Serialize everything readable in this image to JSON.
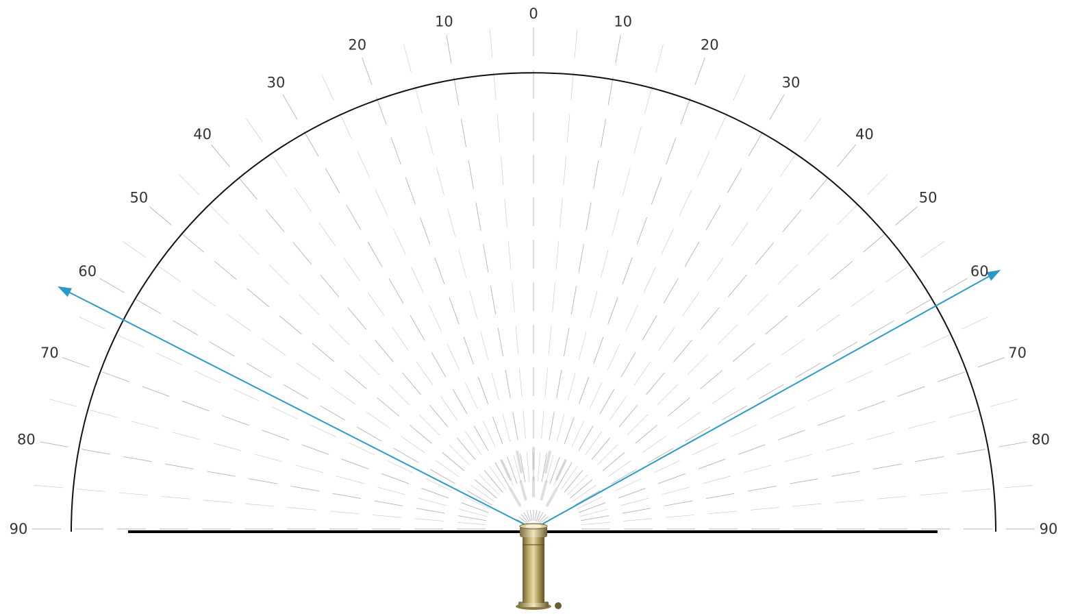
{
  "diagram": {
    "angle_scale": {
      "step_degrees": 5,
      "labeled_angles": [
        0,
        10,
        20,
        30,
        40,
        50,
        60,
        70,
        80,
        90
      ],
      "labels_left": [
        "10",
        "20",
        "30",
        "40",
        "50",
        "60",
        "70",
        "80",
        "90"
      ],
      "labels_right": [
        "10",
        "20",
        "30",
        "40",
        "50",
        "60",
        "70",
        "80",
        "90"
      ],
      "label_center": "0"
    },
    "beam": {
      "left_angle_degrees": 63,
      "right_angle_degrees": 61,
      "color": "#2a9bc8"
    },
    "colors": {
      "arc": "#111111",
      "baseline": "#000000",
      "grid_lines": "#9a9a9a",
      "fixture_brass": "#b9a767"
    },
    "fixture": {
      "icon": "brass-inground-light-fixture-icon"
    }
  }
}
